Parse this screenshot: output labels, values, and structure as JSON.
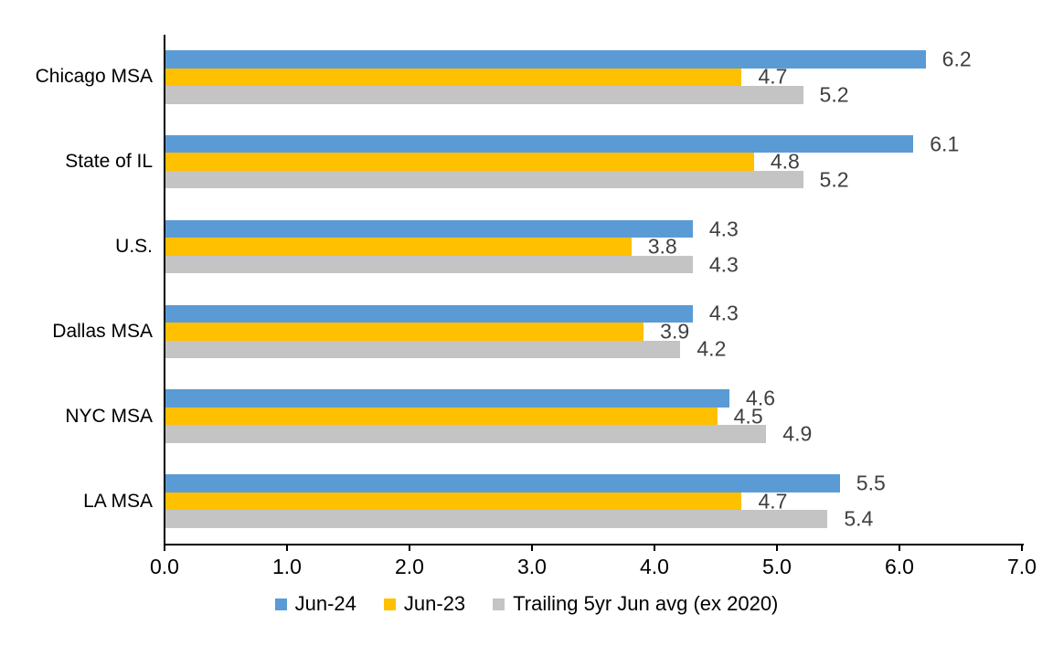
{
  "chart_data": {
    "type": "bar",
    "orientation": "horizontal",
    "title": "",
    "categories": [
      "Chicago MSA",
      "State of IL",
      "U.S.",
      "Dallas MSA",
      "NYC MSA",
      "LA MSA"
    ],
    "series": [
      {
        "name": "Jun-24",
        "color": "#5B9BD5",
        "values": [
          6.2,
          6.1,
          4.3,
          4.3,
          4.6,
          5.5
        ],
        "labels": [
          "6.2",
          "6.1",
          "4.3",
          "4.3",
          "4.6",
          "5.5"
        ]
      },
      {
        "name": "Jun-23",
        "color": "#FFC000",
        "values": [
          4.7,
          4.8,
          3.8,
          3.9,
          4.5,
          4.7
        ],
        "labels": [
          "4.7",
          "4.8",
          "3.8",
          "3.9",
          "4.5",
          "4.7"
        ]
      },
      {
        "name": "Trailing 5yr Jun avg (ex 2020)",
        "color": "#C4C4C4",
        "values": [
          5.2,
          5.2,
          4.3,
          4.2,
          4.9,
          5.4
        ],
        "labels": [
          "5.2",
          "5.2",
          "4.3",
          "4.2",
          "4.9",
          "5.4"
        ]
      }
    ],
    "xlim": [
      0,
      7
    ],
    "x_ticks": [
      "0.0",
      "1.0",
      "2.0",
      "3.0",
      "4.0",
      "5.0",
      "6.0",
      "7.0"
    ],
    "grid": false,
    "legend_position": "bottom",
    "data_labels": true
  },
  "colors": {
    "background": "#FFFFFF",
    "axis": "#000000",
    "category_label": "#000000",
    "tick_label": "#000000",
    "data_label": "#404040"
  }
}
